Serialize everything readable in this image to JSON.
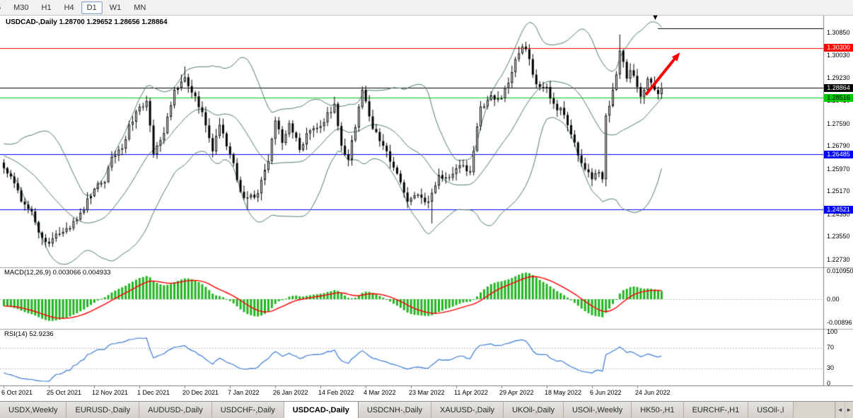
{
  "toolbar": {
    "timeframes": [
      "5",
      "M30",
      "H1",
      "H4",
      "D1",
      "W1",
      "MN"
    ],
    "selected": "D1"
  },
  "chart_header": {
    "symbol": "USDCAD-,Daily",
    "ohlc": "1.28700 1.29652 1.28656 1.28864"
  },
  "price_axis": {
    "labels": [
      "1.30850",
      "1.30030",
      "1.29230",
      "1.28410",
      "1.27590",
      "1.26790",
      "1.25970",
      "1.25170",
      "1.24350",
      "1.23550",
      "1.22730"
    ]
  },
  "date_axis": {
    "labels": [
      "6 Oct 2021",
      "25 Oct 2021",
      "12 Nov 2021",
      "1 Dec 2021",
      "20 Dec 2021",
      "7 Jan 2022",
      "26 Jan 2022",
      "14 Feb 2022",
      "4 Mar 2022",
      "23 Mar 2022",
      "11 Apr 2022",
      "29 Apr 2022",
      "18 May 2022",
      "6 Jun 2022",
      "24 Jun 2022"
    ]
  },
  "macd_panel": {
    "label": "MACD(12,26,9) 0.003066 0.004933",
    "axis_labels": [
      "0.010950",
      "0.00",
      "-0.00896"
    ],
    "axis_values": [
      0.01095,
      0,
      -0.00896
    ]
  },
  "rsi_panel": {
    "label": "RSI(14) 52.9236",
    "axis_labels": [
      "100",
      "70",
      "30",
      "0"
    ],
    "axis_values": [
      100,
      70,
      30,
      0
    ],
    "levels": [
      70,
      30
    ]
  },
  "annotations": {
    "up_arrow_color": "#ff0000",
    "top_marker_glyph": "▼"
  },
  "tabs": {
    "items": [
      "USDX,Weekly",
      "EURUSD-,Daily",
      "AUDUSD-,Daily",
      "USDCHF-,Daily",
      "USDCAD-,Daily",
      "USDCNH-,Daily",
      "XAUUSD-,Daily",
      "UKOil-,Daily",
      "USOil-,Weekly",
      "HK50-,H1",
      "EURCHF-,H1",
      "USOil-,I"
    ],
    "selected": "USDCAD-,Daily",
    "scroll_left_glyph": "◄",
    "scroll_right_glyph": "►"
  },
  "colors": {
    "bollinger": "#4e7d6d",
    "candle": "#000000",
    "candle_up_fill": "#ffffff",
    "candle_down_fill": "#000000",
    "macd_histogram": "#23b323",
    "macd_signal": "#ff0000",
    "rsi_line": "#3a7bd5",
    "grid_dotted": "#b8b8b8",
    "pane_separator": "#a0a0a0",
    "axis_line": "#808080"
  },
  "chart_data": {
    "type": "candlestick",
    "symbol": "USDCAD",
    "period": "Daily",
    "visible_range": {
      "price_min": 1.2273,
      "price_max": 1.3085,
      "first_date": "6 Oct 2021",
      "last_date": "24 Jun 2022"
    },
    "current": {
      "open": 1.287,
      "high": 1.29652,
      "low": 1.28656,
      "close": 1.28864
    },
    "num_candles": 190,
    "price_path_anchors": [
      [
        -26,
        1.2755
      ],
      [
        -20,
        1.27
      ],
      [
        -14,
        1.2655
      ],
      [
        -8,
        1.2625
      ],
      [
        -3,
        1.2645
      ],
      [
        0,
        1.26
      ],
      [
        2,
        1.257
      ],
      [
        5,
        1.248
      ],
      [
        8,
        1.2445
      ],
      [
        11,
        1.235
      ],
      [
        13,
        1.233
      ],
      [
        16,
        1.2365
      ],
      [
        19,
        1.2385
      ],
      [
        22,
        1.244
      ],
      [
        25,
        1.25
      ],
      [
        27,
        1.2545
      ],
      [
        29,
        1.255
      ],
      [
        31,
        1.264
      ],
      [
        34,
        1.267
      ],
      [
        36,
        1.2755
      ],
      [
        39,
        1.282
      ],
      [
        41,
        1.284
      ],
      [
        43,
        1.265
      ],
      [
        46,
        1.2725
      ],
      [
        49,
        1.288
      ],
      [
        52,
        1.2925
      ],
      [
        54,
        1.287
      ],
      [
        57,
        1.28
      ],
      [
        60,
        1.266
      ],
      [
        62,
        1.2755
      ],
      [
        65,
        1.265
      ],
      [
        68,
        1.2515
      ],
      [
        70,
        1.2495
      ],
      [
        73,
        1.251
      ],
      [
        76,
        1.2625
      ],
      [
        78,
        1.277
      ],
      [
        80,
        1.269
      ],
      [
        82,
        1.276
      ],
      [
        85,
        1.2665
      ],
      [
        88,
        1.2735
      ],
      [
        91,
        1.275
      ],
      [
        95,
        1.283
      ],
      [
        97,
        1.268
      ],
      [
        99,
        1.263
      ],
      [
        103,
        1.288
      ],
      [
        106,
        1.274
      ],
      [
        109,
        1.268
      ],
      [
        113,
        1.258
      ],
      [
        116,
        1.248
      ],
      [
        119,
        1.2505
      ],
      [
        122,
        1.248
      ],
      [
        125,
        1.2575
      ],
      [
        128,
        1.2565
      ],
      [
        131,
        1.261
      ],
      [
        134,
        1.2585
      ],
      [
        137,
        1.282
      ],
      [
        140,
        1.286
      ],
      [
        143,
        1.285
      ],
      [
        145,
        1.2905
      ],
      [
        147,
        1.299
      ],
      [
        149,
        1.3035
      ],
      [
        151,
        1.299
      ],
      [
        153,
        1.29
      ],
      [
        156,
        1.289
      ],
      [
        158,
        1.283
      ],
      [
        161,
        1.279
      ],
      [
        163,
        1.272
      ],
      [
        165,
        1.2645
      ],
      [
        167,
        1.2595
      ],
      [
        169,
        1.256
      ],
      [
        171,
        1.2585
      ],
      [
        172,
        1.256
      ],
      [
        173,
        1.2788
      ],
      [
        175,
        1.288
      ],
      [
        176,
        1.2935
      ],
      [
        177,
        1.302
      ],
      [
        178,
        1.298
      ],
      [
        179,
        1.292
      ],
      [
        180,
        1.295
      ],
      [
        181,
        1.293
      ],
      [
        182,
        1.289
      ],
      [
        183,
        1.2855
      ],
      [
        184,
        1.288
      ],
      [
        185,
        1.292
      ],
      [
        186,
        1.2905
      ],
      [
        187,
        1.288
      ],
      [
        188,
        1.2865
      ],
      [
        189,
        1.28864
      ]
    ],
    "wick_extremes": [
      {
        "i": 13,
        "low": 1.2318
      },
      {
        "i": 52,
        "high": 1.2964
      },
      {
        "i": 70,
        "low": 1.2452
      },
      {
        "i": 123,
        "low": 1.2402
      },
      {
        "i": 150,
        "high": 1.3052
      },
      {
        "i": 177,
        "high": 1.3078
      }
    ],
    "levels": [
      {
        "text": "1.30300",
        "price": 1.303,
        "bg": "#ff0000",
        "fg": "#ffffff"
      },
      {
        "text": "1.28864",
        "price": 1.28864,
        "bg": "#000000",
        "fg": "#ffffff"
      },
      {
        "text": "1.28516",
        "price": 1.28516,
        "bg": "#00cc00",
        "fg": "#000000"
      },
      {
        "text": "1.26485",
        "price": 1.26485,
        "bg": "#0000ff",
        "fg": "#ffffff"
      },
      {
        "text": "1.24521",
        "price": 1.24521,
        "bg": "#0000ff",
        "fg": "#ffffff"
      }
    ],
    "indicators": [
      {
        "name": "Bollinger Bands",
        "period": 20,
        "deviation": 2
      },
      {
        "name": "MACD",
        "fast": 12,
        "slow": 26,
        "signal": 9,
        "main_value": 0.003066,
        "signal_value": 0.004933
      },
      {
        "name": "RSI",
        "period": 14,
        "value": 52.9236
      }
    ]
  }
}
